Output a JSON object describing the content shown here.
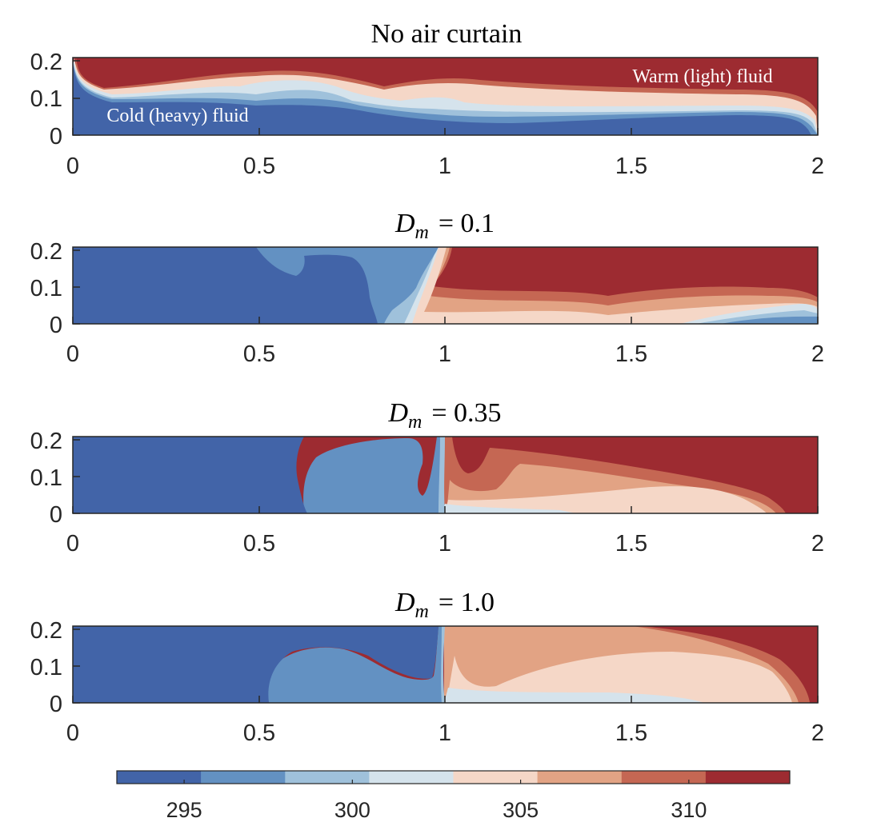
{
  "chart_data": {
    "type": "contour",
    "quantity": "temperature (K)",
    "levels": [
      293,
      295.5,
      298,
      300.5,
      303,
      305.5,
      308,
      310.5,
      313
    ],
    "colormap": [
      "#4264A8",
      "#6391C2",
      "#9FC1DB",
      "#D5E3EC",
      "#F5D7C7",
      "#E2A384",
      "#C56753",
      "#9D2B31"
    ],
    "panels": [
      {
        "id": "no-curtain",
        "title": "No air curtain",
        "title_kind": "text",
        "x_range": [
          0,
          2
        ],
        "y_range": [
          0,
          0.21
        ],
        "x_ticks": [
          "0",
          "0.5",
          "1",
          "1.5",
          "2"
        ],
        "y_ticks": [
          "0",
          "0.1",
          "0.2"
        ],
        "annotations": [
          "Warm (light) fluid",
          "Cold (heavy) fluid"
        ]
      },
      {
        "id": "dm-0-1",
        "title": "= 0.1",
        "title_kind": "math",
        "title_symbol": "D",
        "title_subscript": "m",
        "x_range": [
          0,
          2
        ],
        "y_range": [
          0,
          0.21
        ],
        "x_ticks": [
          "0",
          "0.5",
          "1",
          "1.5",
          "2"
        ],
        "y_ticks": [
          "0",
          "0.1",
          "0.2"
        ]
      },
      {
        "id": "dm-0-35",
        "title": "= 0.35",
        "title_kind": "math",
        "title_symbol": "D",
        "title_subscript": "m",
        "x_range": [
          0,
          2
        ],
        "y_range": [
          0,
          0.21
        ],
        "x_ticks": [
          "0",
          "0.5",
          "1",
          "1.5",
          "2"
        ],
        "y_ticks": [
          "0",
          "0.1",
          "0.2"
        ]
      },
      {
        "id": "dm-1-0",
        "title": "= 1.0",
        "title_kind": "math",
        "title_symbol": "D",
        "title_subscript": "m",
        "x_range": [
          0,
          2
        ],
        "y_range": [
          0,
          0.21
        ],
        "x_ticks": [
          "0",
          "0.5",
          "1",
          "1.5",
          "2"
        ],
        "y_ticks": [
          "0",
          "0.1",
          "0.2"
        ]
      }
    ],
    "colorbar": {
      "range": [
        293,
        313
      ],
      "ticks": [
        295,
        300,
        305,
        310
      ],
      "tick_labels": [
        "295",
        "300",
        "305",
        "310"
      ]
    }
  }
}
